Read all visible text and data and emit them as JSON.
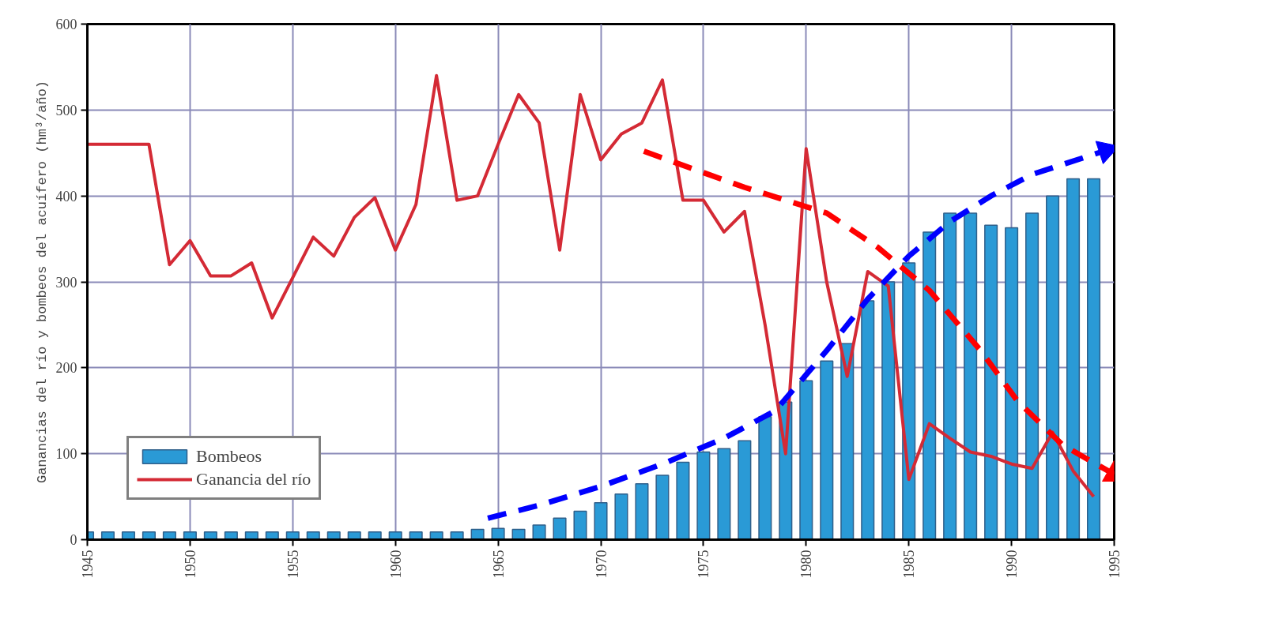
{
  "chart_data": {
    "type": "bar",
    "ylabel": "Ganancias del río y bombeos del acuífero (hm³/año)",
    "x": [
      1945,
      1946,
      1947,
      1948,
      1949,
      1950,
      1951,
      1952,
      1953,
      1954,
      1955,
      1956,
      1957,
      1958,
      1959,
      1960,
      1961,
      1962,
      1963,
      1964,
      1965,
      1966,
      1967,
      1968,
      1969,
      1970,
      1971,
      1972,
      1973,
      1974,
      1975,
      1976,
      1977,
      1978,
      1979,
      1980,
      1981,
      1982,
      1983,
      1984,
      1985,
      1986,
      1987,
      1988,
      1989,
      1990,
      1991,
      1992,
      1993,
      1994
    ],
    "series": [
      {
        "name": "Bombeos",
        "color": "#2a9ad6",
        "values": [
          9,
          9,
          9,
          9,
          9,
          9,
          9,
          9,
          9,
          9,
          9,
          9,
          9,
          9,
          9,
          9,
          9,
          9,
          9,
          12,
          13,
          12,
          17,
          25,
          33,
          43,
          53,
          65,
          75,
          90,
          102,
          106,
          115,
          143,
          160,
          185,
          208,
          228,
          278,
          300,
          322,
          358,
          380,
          380,
          366,
          363,
          380,
          400,
          420,
          420
        ]
      },
      {
        "name": "Ganancia del río",
        "type": "line",
        "color": "#d42a35",
        "values": [
          460,
          460,
          460,
          460,
          320,
          348,
          307,
          307,
          322,
          258,
          305,
          352,
          330,
          375,
          398,
          337,
          390,
          540,
          395,
          400,
          460,
          518,
          485,
          337,
          518,
          442,
          472,
          485,
          535,
          395,
          395,
          358,
          382,
          250,
          100,
          455,
          300,
          190,
          312,
          295,
          70,
          135,
          118,
          102,
          97,
          88,
          83,
          125,
          80,
          50
        ]
      },
      {
        "type": "line",
        "color": "#0000ff",
        "line_style": "dashed",
        "x": [
          1964.5,
          1967,
          1970,
          1973,
          1976,
          1978.5,
          1981,
          1983,
          1985,
          1987,
          1989,
          1991,
          1994.6
        ],
        "values": [
          25,
          40,
          62,
          88,
          118,
          150,
          220,
          280,
          330,
          370,
          400,
          425,
          453
        ]
      },
      {
        "type": "line",
        "color": "#ff0000",
        "line_style": "dashed",
        "x": [
          1972.1,
          1977,
          1981,
          1983.5,
          1986,
          1988.5,
          1990.3,
          1992.5,
          1995
        ],
        "values": [
          452,
          410,
          380,
          340,
          290,
          220,
          161,
          110,
          76
        ]
      }
    ],
    "xlim": [
      1945,
      1995
    ],
    "xticks": [
      1945,
      1950,
      1955,
      1960,
      1965,
      1970,
      1975,
      1980,
      1985,
      1990,
      1995
    ],
    "ylim": [
      0,
      600
    ],
    "yticks": [
      0,
      100,
      200,
      300,
      400,
      500,
      600
    ],
    "grid": true,
    "legend": "bottom left",
    "line_style": "solid"
  }
}
